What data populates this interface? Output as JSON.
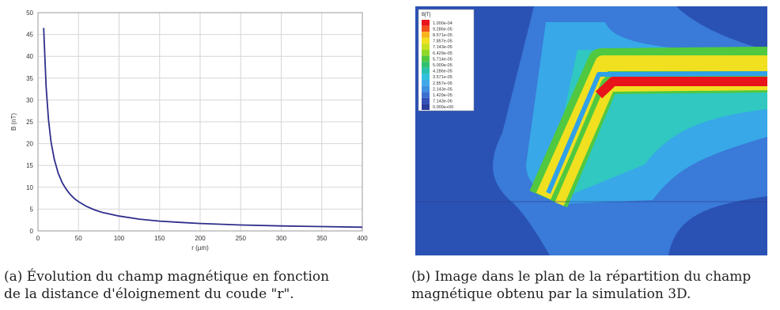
{
  "chart_data": {
    "type": "line",
    "xlabel": "r (µm)",
    "ylabel": "B (nT)",
    "xlim": [
      0,
      400
    ],
    "ylim": [
      0,
      50
    ],
    "xticks": [
      "0",
      "50",
      "100",
      "150",
      "200",
      "250",
      "300",
      "350",
      "400"
    ],
    "yticks": [
      "0",
      "5",
      "10",
      "15",
      "20",
      "25",
      "30",
      "35",
      "40",
      "45",
      "50"
    ],
    "grid": true,
    "series": [
      {
        "color": "#2e2e8c",
        "x": [
          7,
          10,
          13,
          16,
          20,
          25,
          30,
          35,
          40,
          45,
          50,
          60,
          70,
          80,
          100,
          125,
          150,
          175,
          200,
          250,
          300,
          350,
          400
        ],
        "y": [
          46.5,
          33.0,
          25.5,
          20.5,
          16.5,
          13.2,
          11.0,
          9.5,
          8.3,
          7.4,
          6.7,
          5.6,
          4.8,
          4.2,
          3.4,
          2.7,
          2.25,
          1.95,
          1.7,
          1.35,
          1.15,
          1.0,
          0.85
        ]
      }
    ]
  },
  "simulation_image": {
    "legend_header": "B[T]",
    "legend_values": [
      "1.000e-04",
      "9.286e-05",
      "8.571e-05",
      "7.857e-05",
      "7.143e-05",
      "6.429e-05",
      "5.714e-05",
      "5.000e-05",
      "4.286e-05",
      "3.571e-05",
      "2.857e-05",
      "2.143e-05",
      "1.429e-05",
      "7.143e-06",
      "0.000e+00"
    ],
    "legend_colors": [
      "#e8141c",
      "#f0501c",
      "#f8b41c",
      "#f0e020",
      "#c8e020",
      "#90d828",
      "#50c840",
      "#30c070",
      "#28c0b0",
      "#30c0e0",
      "#40a8e8",
      "#4090e0",
      "#3c70d0",
      "#3450b8",
      "#2c3c9c"
    ]
  },
  "captions": {
    "a_line1": "(a) Évolution du champ magnétique en fonction",
    "a_line2": "de la distance d'éloignement du coude \"r\".",
    "b_line1": "(b) Image dans le plan de la répartition du champ",
    "b_line2": "magnétique obtenu par la simulation 3D."
  }
}
